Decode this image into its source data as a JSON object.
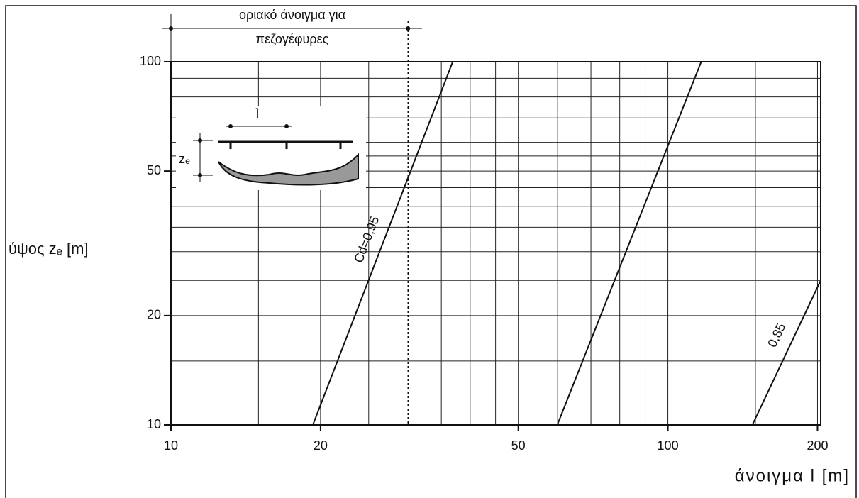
{
  "chart_data": {
    "type": "line",
    "xlabel": "άνοιγμα l  [m]",
    "ylabel": "ύψος zₑ [m]",
    "xscale": "log",
    "yscale": "log",
    "xlim": [
      10,
      203
    ],
    "ylim": [
      10,
      100
    ],
    "xticks": [
      10,
      20,
      50,
      100,
      200
    ],
    "yticks": [
      10,
      20,
      50,
      100
    ],
    "xgrid": [
      15,
      20,
      25,
      35,
      40,
      45,
      50,
      60,
      70,
      80,
      90,
      100,
      150,
      200
    ],
    "ygrid": [
      15,
      20,
      25,
      30,
      35,
      40,
      45,
      50,
      55,
      60,
      70,
      80,
      90
    ],
    "limit_x": 30,
    "limit_label": [
      "οριακό άνοιγμα για",
      "πεζογέφυρες"
    ],
    "series": [
      {
        "color": "#111",
        "x": [
          19.3,
          36.9
        ],
        "values": [
          10,
          100
        ]
      },
      {
        "color": "#111",
        "x": [
          59.9,
          116.7
        ],
        "values": [
          10,
          100
        ]
      },
      {
        "color": "#111",
        "x": [
          147.9,
          203
        ],
        "values": [
          10,
          25
        ]
      }
    ],
    "annotations": [
      "Cd=0,95",
      "0,85",
      "l",
      "zₑ"
    ]
  }
}
